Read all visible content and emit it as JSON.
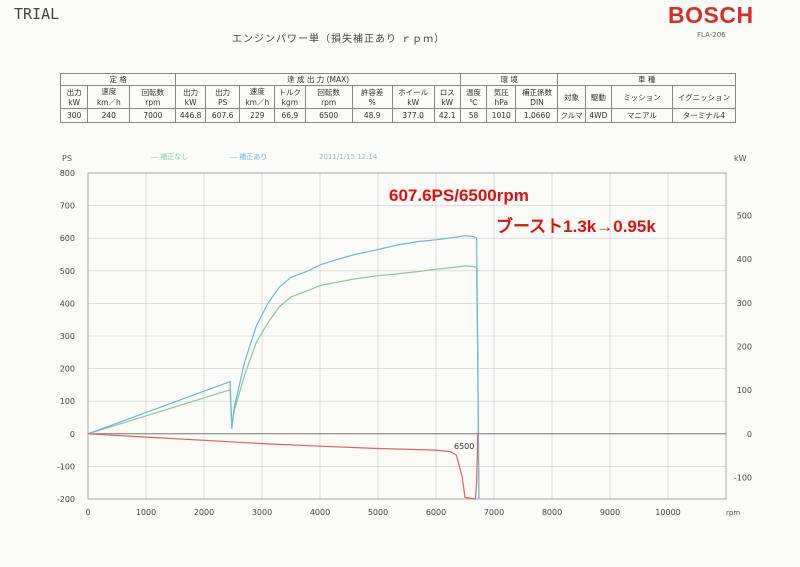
{
  "header": {
    "trial": "TRIAL",
    "brand": "BOSCH",
    "model": "FLA-206",
    "title": "エンジンパワー単（損失補正あり ｒｐｍ）"
  },
  "spec_table": {
    "group_headers": [
      "定 格",
      "達 成 出 力 (MAX)",
      "環 境",
      "車 種"
    ],
    "columns": [
      {
        "top": "出力",
        "unit": "kW",
        "value": "300"
      },
      {
        "top": "速度",
        "unit": "km／h",
        "value": "240"
      },
      {
        "top": "回転数",
        "unit": "rpm",
        "value": "7000"
      },
      {
        "top": "出力",
        "unit": "kW",
        "value": "446.8"
      },
      {
        "top": "出力",
        "unit": "PS",
        "value": "607.6"
      },
      {
        "top": "速度",
        "unit": "km／h",
        "value": "229"
      },
      {
        "top": "トルク",
        "unit": "kgm",
        "value": "66.9"
      },
      {
        "top": "回転数",
        "unit": "rpm",
        "value": "6500"
      },
      {
        "top": "許容差",
        "unit": "%",
        "value": "48.9"
      },
      {
        "top": "ホイール",
        "unit": "kW",
        "value": "377.0"
      },
      {
        "top": "ロス",
        "unit": "kW",
        "value": "42.1"
      },
      {
        "top": "温度",
        "unit": "℃",
        "value": "58"
      },
      {
        "top": "気圧",
        "unit": "hPa",
        "value": "1010"
      },
      {
        "top": "補正係数",
        "unit": "DIN",
        "value": "1.0660"
      },
      {
        "top": "対象",
        "unit": "",
        "value": "クルマ"
      },
      {
        "top": "駆動",
        "unit": "",
        "value": "4WD"
      },
      {
        "top": "ミッション",
        "unit": "",
        "value": "マニアル"
      },
      {
        "top": "イグニッション",
        "unit": "",
        "value": "ターミナル4"
      }
    ]
  },
  "annotations": {
    "line1": "607.6PS/6500rpm",
    "line2": "ブースト1.3k→0.95k",
    "marker": "6500"
  },
  "chart_data": {
    "type": "line",
    "legend": [
      "補正なし",
      "補正あり"
    ],
    "timestamp": "2011/1/15.12:14",
    "y_left_label": "PS",
    "y_right_label": "kW",
    "x_unit": "rpm",
    "xlim": [
      0,
      11000
    ],
    "ylim_left": [
      -200,
      800
    ],
    "ylim_right": [
      -149,
      597
    ],
    "x_ticks": [
      0,
      1000,
      2000,
      3000,
      4000,
      5000,
      6000,
      7000,
      8000,
      9000,
      10000
    ],
    "y_left_ticks": [
      -200,
      -100,
      0,
      100,
      200,
      300,
      400,
      500,
      600,
      700,
      800
    ],
    "y_right_ticks": [
      -100,
      0,
      100,
      200,
      300,
      400,
      500
    ],
    "grid": true,
    "colors": {
      "uncorrected": "#8cc79a",
      "corrected": "#6eb7d8",
      "loss": "#e06060",
      "grid": "#cccccc",
      "axis": "#999999"
    },
    "series": [
      {
        "name": "補正なし",
        "x": [
          0,
          2450,
          2480,
          2520,
          2700,
          2900,
          3100,
          3300,
          3500,
          3800,
          4000,
          4300,
          4600,
          5000,
          5300,
          5700,
          6000,
          6300,
          6500,
          6650,
          6700,
          6720,
          6740
        ],
        "y": [
          0,
          135,
          30,
          70,
          180,
          280,
          340,
          390,
          420,
          440,
          455,
          465,
          475,
          485,
          490,
          498,
          505,
          510,
          515,
          513,
          510,
          200,
          -200
        ]
      },
      {
        "name": "補正あり",
        "x": [
          0,
          2450,
          2480,
          2520,
          2700,
          2900,
          3100,
          3300,
          3500,
          3800,
          4000,
          4300,
          4600,
          5000,
          5300,
          5700,
          6000,
          6300,
          6500,
          6650,
          6700,
          6720,
          6740
        ],
        "y": [
          0,
          160,
          15,
          80,
          220,
          330,
          400,
          450,
          480,
          500,
          518,
          535,
          550,
          565,
          578,
          590,
          595,
          602,
          607.6,
          605,
          600,
          250,
          -200
        ]
      },
      {
        "name": "",
        "x": [
          0,
          1000,
          2000,
          3000,
          4000,
          5000,
          6000,
          6250,
          6350,
          6450,
          6500,
          6680,
          6700,
          6720,
          6740
        ],
        "y": [
          0,
          -10,
          -20,
          -30,
          -38,
          -45,
          -50,
          -55,
          -65,
          -130,
          -195,
          -200,
          -150,
          0,
          0
        ]
      }
    ]
  }
}
